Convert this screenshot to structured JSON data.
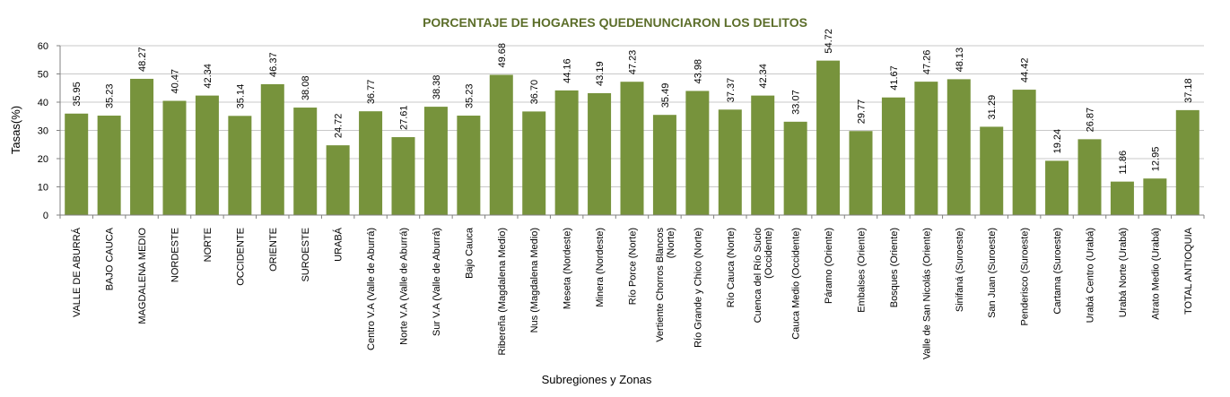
{
  "colors": {
    "bar": "#77933C",
    "title": "#5C6E2A",
    "grid": "#C8C8C8",
    "axis": "#808080"
  },
  "chart_data": {
    "type": "bar",
    "title": "PORCENTAJE DE HOGARES QUEDENUNCIARON LOS DELITOS",
    "xlabel": "Subregiones y Zonas",
    "ylabel": "Tasas(%)",
    "ylim": [
      0,
      60
    ],
    "yticks": [
      0,
      10,
      20,
      30,
      40,
      50,
      60
    ],
    "grid": true,
    "legend": "none",
    "categories": [
      [
        "VALLE DE ABURRÁ"
      ],
      [
        "BAJO CAUCA"
      ],
      [
        "MAGDALENA MEDIO"
      ],
      [
        "NORDESTE"
      ],
      [
        "NORTE"
      ],
      [
        "OCCIDENTE"
      ],
      [
        "ORIENTE"
      ],
      [
        "SUROESTE"
      ],
      [
        "URABÁ"
      ],
      [
        "Centro V.A (Valle de Aburrá)"
      ],
      [
        "Norte V.A (Valle de Aburrá)"
      ],
      [
        "Sur V.A (Valle de Aburrá)"
      ],
      [
        "Bajo Cauca"
      ],
      [
        "Ribereña  (Magdalena Medio)"
      ],
      [
        "Nus  (Magdalena Medio)"
      ],
      [
        "Meseta  (Nordeste)"
      ],
      [
        "Minera  (Nordeste)"
      ],
      [
        "Río Porce    (Norte)"
      ],
      [
        "Vertiente Chorros Blancos",
        "(Norte)"
      ],
      [
        "Río Grande y Chico  (Norte)"
      ],
      [
        "Río Cauca  (Norte)"
      ],
      [
        "Cuenca del Río Sucio",
        "(Occidente)"
      ],
      [
        "Cauca Medio  (Occidente)"
      ],
      [
        "Páramo   (Oriente)"
      ],
      [
        "Embalses  (Oriente)"
      ],
      [
        "Bosques  (Oriente)"
      ],
      [
        "Valle de San Nicolás  (Oriente)"
      ],
      [
        "Sinifaná  (Suroeste)"
      ],
      [
        "San Juan  (Suroeste)"
      ],
      [
        "Penderisco  (Suroeste)"
      ],
      [
        "Cartama  (Suroeste)"
      ],
      [
        "Urabá Centro   (Urabá)"
      ],
      [
        "Urabá Norte  (Urabá)"
      ],
      [
        "Atrato Medio  (Urabá)"
      ],
      [
        "TOTAL ANTIOQUIA"
      ]
    ],
    "values": [
      35.95,
      35.23,
      48.27,
      40.47,
      42.34,
      35.14,
      46.37,
      38.08,
      24.72,
      36.77,
      27.61,
      38.38,
      35.23,
      49.68,
      36.7,
      44.16,
      43.19,
      47.23,
      35.49,
      43.98,
      37.37,
      42.34,
      33.07,
      54.72,
      29.77,
      41.67,
      47.26,
      48.13,
      31.29,
      44.42,
      19.24,
      26.87,
      11.86,
      12.95,
      37.18
    ],
    "value_labels": [
      "35.95",
      "35.23",
      "48.27",
      "40.47",
      "42.34",
      "35.14",
      "46.37",
      "38.08",
      "24.72",
      "36.77",
      "27.61",
      "38.38",
      "35.23",
      "49.68",
      "36.70",
      "44.16",
      "43.19",
      "47.23",
      "35.49",
      "43.98",
      "37.37",
      "42.34",
      "33.07",
      "54.72",
      "29.77",
      "41.67",
      "47.26",
      "48.13",
      "31.29",
      "44.42",
      "19.24",
      "26.87",
      "11.86",
      "12.95",
      "37.18"
    ]
  }
}
